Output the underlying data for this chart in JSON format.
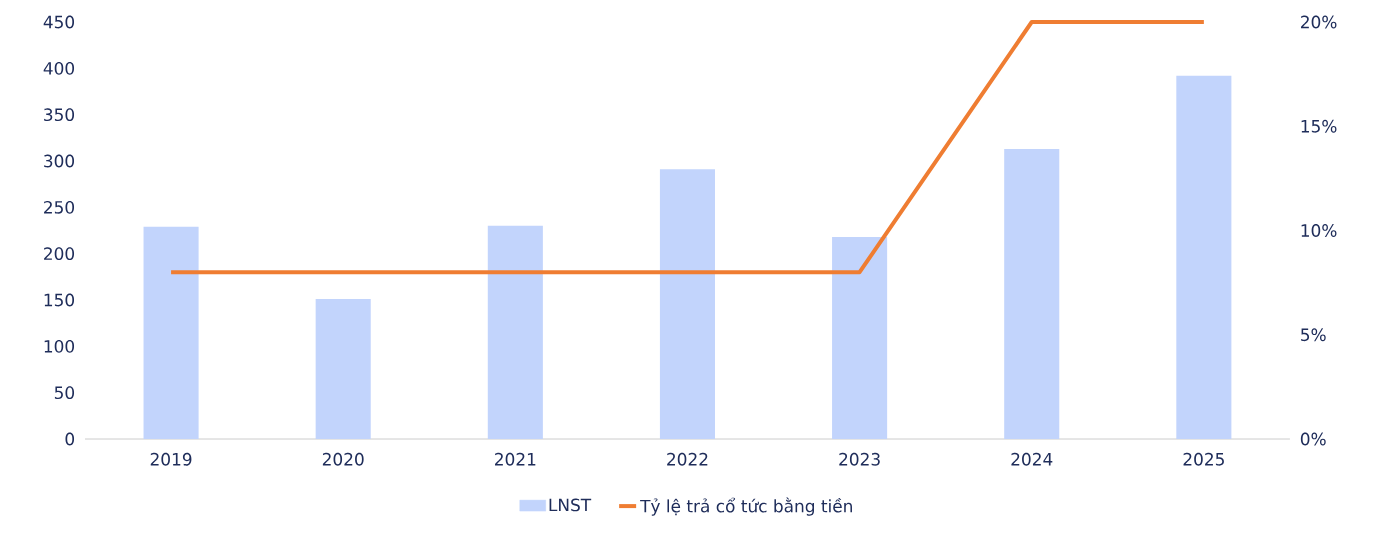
{
  "chart_data": {
    "type": "bar",
    "categories": [
      "2019",
      "2020",
      "2021",
      "2022",
      "2023",
      "2024",
      "2025"
    ],
    "series": [
      {
        "name": "LNST",
        "color": "#c2d4fc",
        "values": [
          229,
          151,
          230,
          291,
          218,
          313,
          392
        ]
      },
      {
        "name": "Tỷ lệ trả cổ tức bằng tiền",
        "type": "line",
        "axis": "y2",
        "color": "#ef7d32",
        "values": [
          8,
          8,
          8,
          8,
          8,
          20,
          20
        ]
      }
    ],
    "ylim": [
      0,
      450
    ],
    "yticks": [
      0,
      50,
      100,
      150,
      200,
      250,
      300,
      350,
      400,
      450
    ],
    "y2lim": [
      0,
      20
    ],
    "y2ticks": [
      {
        "value": 0,
        "label": "0%"
      },
      {
        "value": 5,
        "label": "5%"
      },
      {
        "value": 10,
        "label": "10%"
      },
      {
        "value": 15,
        "label": "15%"
      },
      {
        "value": 20,
        "label": "20%"
      }
    ],
    "legend": "bottom"
  }
}
